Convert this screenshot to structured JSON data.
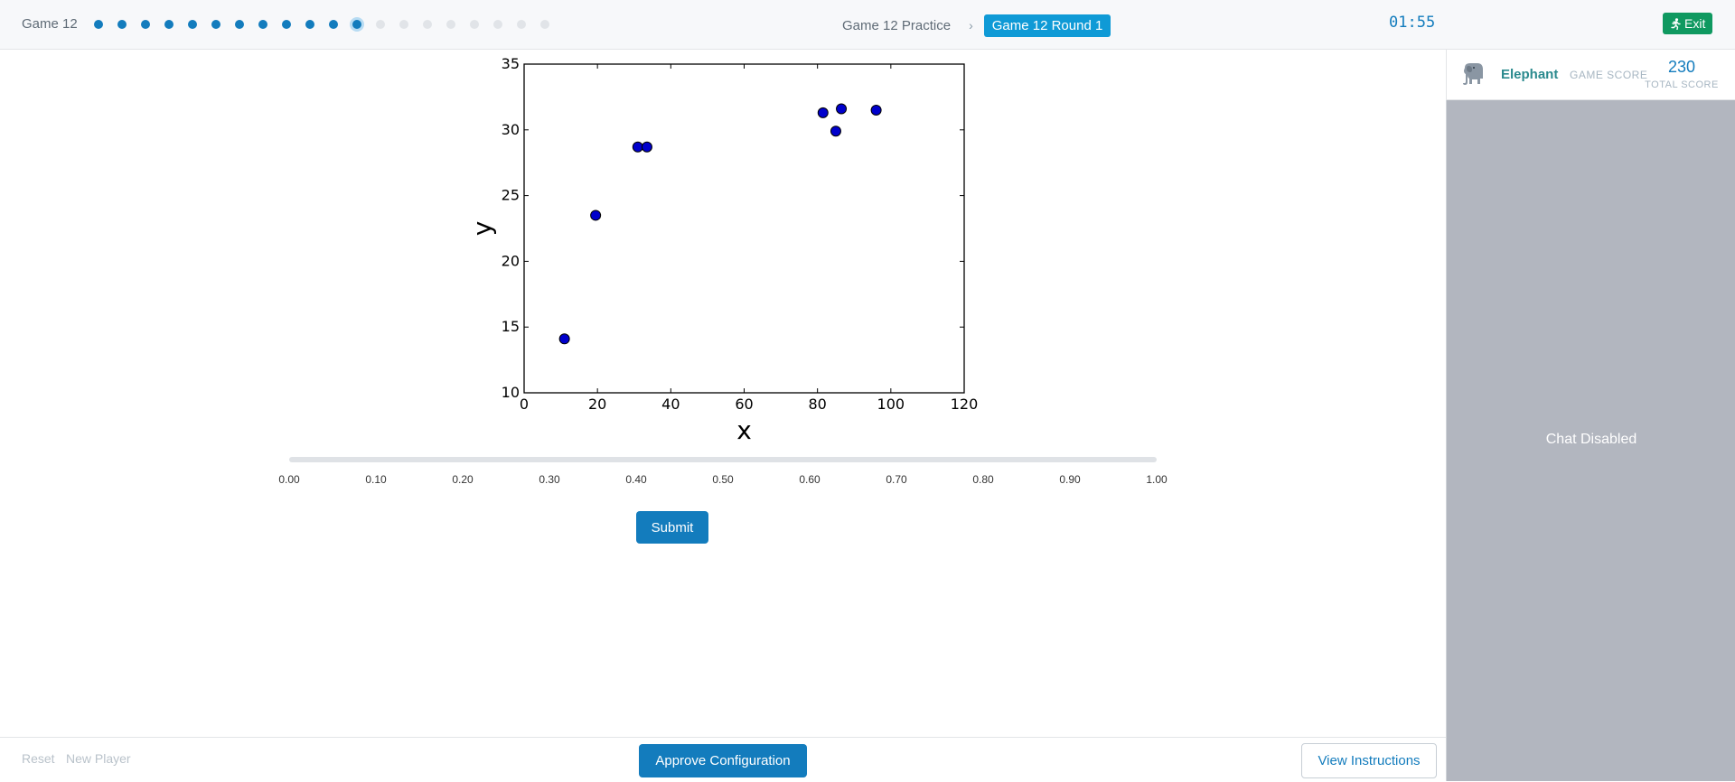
{
  "header": {
    "game_title": "Game 12",
    "progress": {
      "total": 20,
      "completed": 11,
      "current_index": 12
    },
    "breadcrumb": {
      "parent": "Game 12 Practice",
      "current": "Game 12 Round 1"
    },
    "timer": "01:55",
    "exit_label": "Exit",
    "exit_icon": "running-person-icon",
    "exit_color": "#0f9960"
  },
  "sidebar": {
    "player_name": "Elephant",
    "player_icon": "elephant-icon",
    "game_score_label": "GAME SCORE",
    "total_score": "230",
    "total_score_label": "TOTAL SCORE",
    "chat_status": "Chat Disabled"
  },
  "slider": {
    "ticks": [
      "0.00",
      "0.10",
      "0.20",
      "0.30",
      "0.40",
      "0.50",
      "0.60",
      "0.70",
      "0.80",
      "0.90",
      "1.00"
    ]
  },
  "actions": {
    "submit_label": "Submit",
    "approve_label": "Approve Configuration",
    "instructions_label": "View Instructions",
    "reset_label": "Reset",
    "new_player_label": "New Player"
  },
  "colors": {
    "accent": "#137cbd",
    "point_fill": "#0000cc",
    "chat_bg": "#b2b6bf"
  },
  "chart_data": {
    "type": "scatter",
    "xlabel": "x",
    "ylabel": "y",
    "xlim": [
      0,
      120
    ],
    "ylim": [
      10,
      35
    ],
    "xticks": [
      0,
      20,
      40,
      60,
      80,
      100,
      120
    ],
    "yticks": [
      10,
      15,
      20,
      25,
      30,
      35
    ],
    "grid": false,
    "points": [
      {
        "x": 11,
        "y": 14.1
      },
      {
        "x": 19.5,
        "y": 23.5
      },
      {
        "x": 31,
        "y": 28.7
      },
      {
        "x": 33.5,
        "y": 28.7
      },
      {
        "x": 81.5,
        "y": 31.3
      },
      {
        "x": 85,
        "y": 29.9
      },
      {
        "x": 86.5,
        "y": 31.6
      },
      {
        "x": 96,
        "y": 31.5
      }
    ]
  }
}
